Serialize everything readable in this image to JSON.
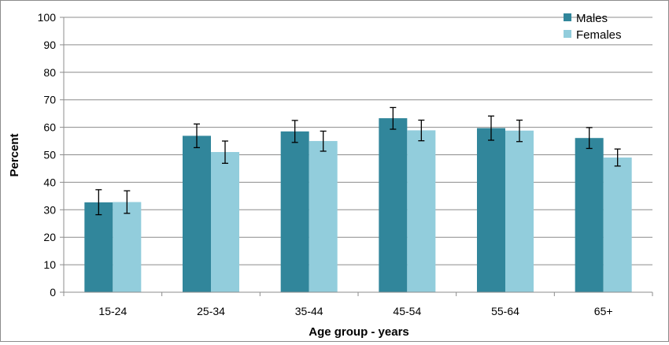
{
  "chart_data": {
    "type": "bar",
    "title": "",
    "xlabel": "Age group - years",
    "ylabel": "Percent",
    "ylim": [
      0,
      100
    ],
    "yticks": [
      0,
      10,
      20,
      30,
      40,
      50,
      60,
      70,
      80,
      90,
      100
    ],
    "grid": true,
    "legend_position": "top-right",
    "categories": [
      "15-24",
      "25-34",
      "35-44",
      "45-54",
      "55-64",
      "65+"
    ],
    "series": [
      {
        "name": "Males",
        "color": "#31869B",
        "values": [
          32.7,
          56.9,
          58.5,
          63.3,
          59.7,
          56.1
        ],
        "error_low": [
          28.2,
          52.6,
          54.5,
          59.3,
          55.3,
          52.3
        ],
        "error_high": [
          37.3,
          61.2,
          62.5,
          67.2,
          64.1,
          59.9
        ]
      },
      {
        "name": "Females",
        "color": "#92CDDC",
        "values": [
          32.8,
          51.0,
          55.0,
          58.9,
          58.8,
          49.0
        ],
        "error_low": [
          28.7,
          46.9,
          51.3,
          55.1,
          54.8,
          45.9
        ],
        "error_high": [
          36.9,
          55.0,
          58.6,
          62.6,
          62.6,
          52.1
        ]
      }
    ]
  }
}
